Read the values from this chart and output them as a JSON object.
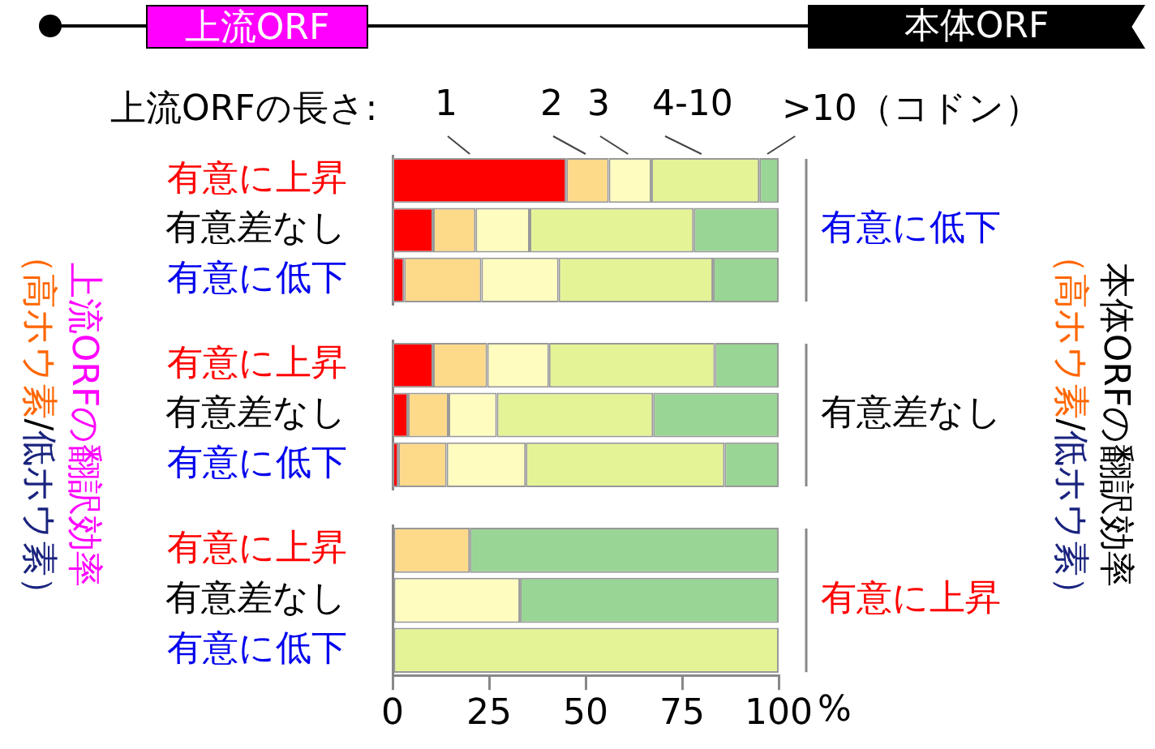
{
  "chart_data": [
    {
      "type": "bar",
      "orientation": "horizontal",
      "stacked": true,
      "categories": [
        "有意に上昇",
        "有意差なし",
        "有意に低下"
      ],
      "y2label": "有意に低下",
      "legend_title": "上流ORFの長さ:",
      "legend": "top",
      "xlim": [
        0,
        100
      ],
      "xticks": [
        0,
        25,
        50,
        75,
        100
      ],
      "tick_labels": "y",
      "grid": false,
      "annotations": [
        "上流ORF",
        "本体ORF",
        "上流ORFの翻訳効率（高ホウ素/低ホウ素）",
        "本体ORFの翻訳効率（高ホウ素/低ホウ素）"
      ],
      "series": [
        {
          "name": "1",
          "color": "#ff0000",
          "values": [
            45,
            10.5,
            3
          ]
        },
        {
          "name": "2",
          "color": "#fdd98a",
          "values": [
            11,
            11,
            20
          ]
        },
        {
          "name": "3",
          "color": "#fffcc0",
          "values": [
            11,
            14,
            20
          ]
        },
        {
          "name": "4-10",
          "color": "#e5f397",
          "values": [
            28,
            42.5,
            40
          ]
        },
        {
          "name": ">10（コドン）",
          "color": "#99d594",
          "values": [
            5,
            22,
            17
          ]
        }
      ]
    },
    {
      "type": "bar",
      "orientation": "horizontal",
      "stacked": true,
      "categories": [
        "有意に上昇",
        "有意差なし",
        "有意に低下"
      ],
      "y2label": "有意差なし",
      "xlim": [
        0,
        100
      ],
      "xticks": [
        0,
        25,
        50,
        75,
        100
      ],
      "tick_labels": "y",
      "grid": false,
      "series": [
        {
          "color": "#ff0000",
          "values": [
            10.5,
            4,
            1.5
          ]
        },
        {
          "color": "#fdd98a",
          "values": [
            14,
            10.5,
            12.5
          ]
        },
        {
          "color": "#fffcc0",
          "values": [
            16,
            12.5,
            20.5
          ]
        },
        {
          "color": "#e5f397",
          "values": [
            43,
            40.5,
            51.5
          ]
        },
        {
          "color": "#99d594",
          "values": [
            16.5,
            32.5,
            14
          ]
        }
      ]
    },
    {
      "type": "bar",
      "orientation": "horizontal",
      "stacked": true,
      "categories": [
        "有意に上昇",
        "有意差なし",
        "有意に低下"
      ],
      "y2label": "有意に上昇",
      "xlabel": "%",
      "xlim": [
        0,
        100
      ],
      "xticks": [
        0,
        25,
        50,
        75,
        100
      ],
      "grid": false,
      "series": [
        {
          "color": "#ff0000",
          "values": [
            0,
            0,
            0
          ]
        },
        {
          "color": "#fdd98a",
          "values": [
            20,
            0,
            0
          ]
        },
        {
          "color": "#fffcc0",
          "values": [
            0,
            33,
            0
          ]
        },
        {
          "color": "#e5f397",
          "values": [
            0,
            0,
            100
          ]
        },
        {
          "color": "#99d594",
          "values": [
            80,
            67,
            0
          ]
        }
      ]
    }
  ]
}
